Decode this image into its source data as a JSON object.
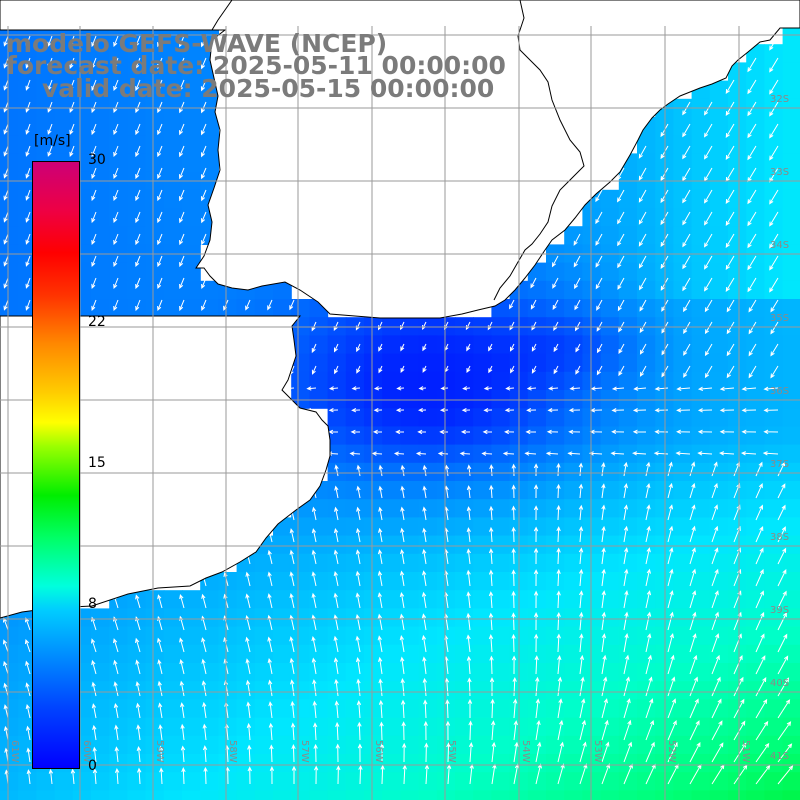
{
  "title": {
    "line1": "modelo GEFS-WAVE (NCEP)",
    "line2": "forecast date: 2025-05-11 00:00:00",
    "line3": "valid date: 2025-05-15 00:00:00"
  },
  "colorbar": {
    "unit": "[m/s]",
    "ticks": [
      "30",
      "22",
      "15",
      "8",
      "0"
    ],
    "tick_values": [
      30,
      22,
      15,
      8,
      0
    ],
    "range": [
      0,
      30
    ]
  },
  "grid": {
    "lat_labels": [
      "32S",
      "33S",
      "34S",
      "35S",
      "36S",
      "37S",
      "38S",
      "39S",
      "40S",
      "41S"
    ],
    "lon_labels": [
      "61W",
      "60W",
      "59W",
      "58W",
      "57W",
      "56W",
      "55W",
      "54W",
      "53W",
      "52W",
      "51W"
    ],
    "lon_range": [
      -61.2,
      -50.3
    ],
    "lat_range": [
      -30.7,
      -41.5
    ]
  },
  "colors": {
    "land": "#ffffff",
    "coast": "#000000",
    "grid": "#9a9a9a",
    "vector": "#ffffff",
    "title": "#7b7b7b"
  },
  "field": {
    "variable": "wind speed and direction",
    "calm_zone": "Rio de la Plata estuary and coast (blue, ~0-3 m/s)",
    "strong_zone": "south-east corner (cyan-green, ~8-12 m/s)"
  }
}
